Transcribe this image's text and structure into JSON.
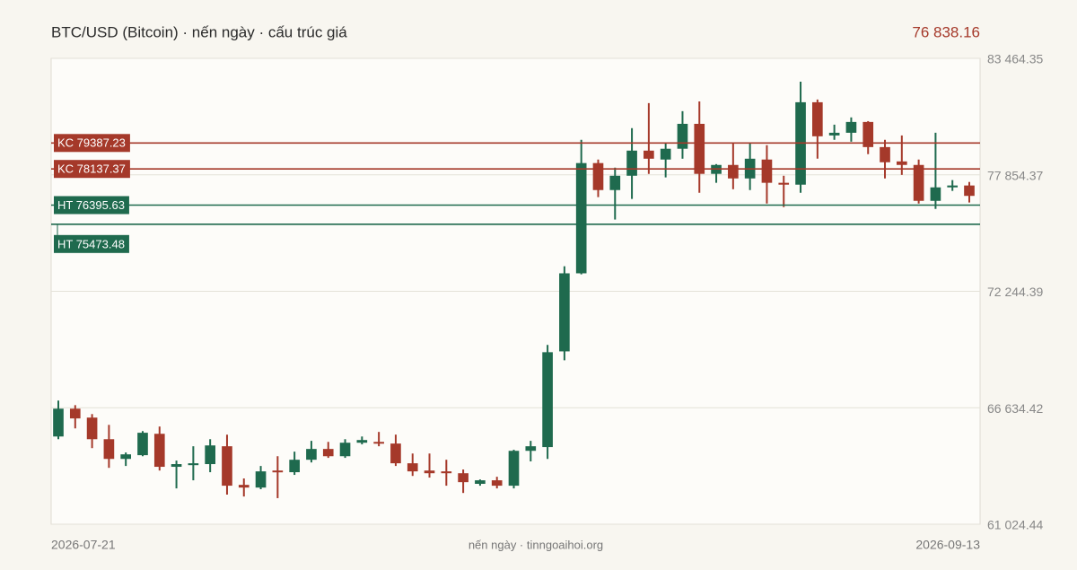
{
  "chart_data": {
    "type": "candlestick",
    "title": "BTC/USD (Bitcoin) · nến ngày · cấu trúc giá",
    "last_price": "76 838.16",
    "footer": "nến ngày · tinngoaihoi.org",
    "categories": [
      "2026-07-21",
      null,
      null,
      null,
      null,
      null,
      null,
      null,
      null,
      null,
      null,
      null,
      null,
      null,
      null,
      null,
      null,
      null,
      null,
      null,
      null,
      null,
      null,
      null,
      null,
      null,
      null,
      null,
      null,
      null,
      null,
      null,
      null,
      null,
      null,
      null,
      null,
      null,
      null,
      null,
      null,
      null,
      null,
      null,
      null,
      null,
      null,
      null,
      null,
      null,
      null,
      null,
      null,
      null,
      "2026-09-13"
    ],
    "open": [
      65250,
      66590,
      66160,
      65120,
      64170,
      64350,
      65380,
      63790,
      63870,
      63920,
      64780,
      62920,
      62790,
      63610,
      63530,
      64130,
      64650,
      64300,
      64950,
      64990,
      64910,
      63960,
      63610,
      63570,
      63480,
      62970,
      63140,
      62880,
      64560,
      64740,
      69350,
      73110,
      78420,
      77120,
      77810,
      79020,
      78590,
      79110,
      80310,
      77900,
      78330,
      77680,
      78590,
      77470,
      77380,
      81350,
      79750,
      79880,
      80400,
      79190,
      78500,
      78330,
      76600,
      77250,
      77340
    ],
    "high": [
      66980,
      66760,
      66330,
      65810,
      64480,
      65510,
      65730,
      64090,
      64780,
      65120,
      65340,
      63230,
      63830,
      64300,
      64520,
      65040,
      64990,
      65120,
      65250,
      65470,
      65340,
      64430,
      64430,
      64130,
      63660,
      63180,
      63310,
      64610,
      65040,
      69660,
      73450,
      79540,
      78590,
      78200,
      80100,
      81310,
      79360,
      80920,
      81390,
      78370,
      79410,
      79360,
      79280,
      77810,
      82340,
      81480,
      80270,
      80620,
      80440,
      79540,
      79750,
      78590,
      79880,
      77600,
      77510
    ],
    "low": [
      65120,
      65640,
      64690,
      63740,
      63830,
      64300,
      63610,
      62750,
      63140,
      63530,
      62450,
      62360,
      62710,
      62280,
      63400,
      64000,
      64220,
      64220,
      64870,
      64780,
      63830,
      63350,
      63270,
      62880,
      62530,
      62880,
      62750,
      62750,
      64050,
      64170,
      68920,
      73060,
      76780,
      75700,
      76690,
      77900,
      77730,
      78630,
      76990,
      77470,
      77160,
      77120,
      76470,
      76300,
      76990,
      78630,
      79540,
      79450,
      78850,
      77680,
      77850,
      76470,
      76210,
      77080,
      76520
    ],
    "close": [
      66590,
      66120,
      65120,
      64170,
      64390,
      65430,
      63790,
      63920,
      63960,
      64820,
      62880,
      62790,
      63570,
      63530,
      64130,
      64650,
      64300,
      64950,
      65080,
      64910,
      63960,
      63570,
      63480,
      63480,
      63050,
      63140,
      62880,
      64560,
      64780,
      69310,
      73110,
      78420,
      77120,
      77810,
      79020,
      78630,
      79110,
      80310,
      77900,
      78330,
      77680,
      78630,
      77470,
      77380,
      81350,
      79710,
      79880,
      80400,
      79190,
      78460,
      78330,
      76600,
      77250,
      77340,
      76840
    ],
    "up_color": "#1f6a4e",
    "down_color": "#a5392a",
    "ylim": [
      61024.44,
      83464.35
    ],
    "yticks": [
      {
        "value": 61024.44,
        "label": "61 024.44"
      },
      {
        "value": 66634.42,
        "label": "66 634.42"
      },
      {
        "value": 72244.39,
        "label": "72 244.39"
      },
      {
        "value": 77854.37,
        "label": "77 854.37"
      },
      {
        "value": 83464.35,
        "label": "83 464.35"
      }
    ],
    "grid": true,
    "levels": [
      {
        "value": 79387.23,
        "label": "KC 79387.23",
        "color": "#a5392a"
      },
      {
        "value": 78137.37,
        "label": "KC 78137.37",
        "color": "#a5392a"
      },
      {
        "value": 76395.63,
        "label": "HT 76395.63",
        "color": "#1f6a4e"
      },
      {
        "value": 75473.48,
        "label": "HT 75473.48",
        "color": "#1f6a4e"
      }
    ]
  }
}
